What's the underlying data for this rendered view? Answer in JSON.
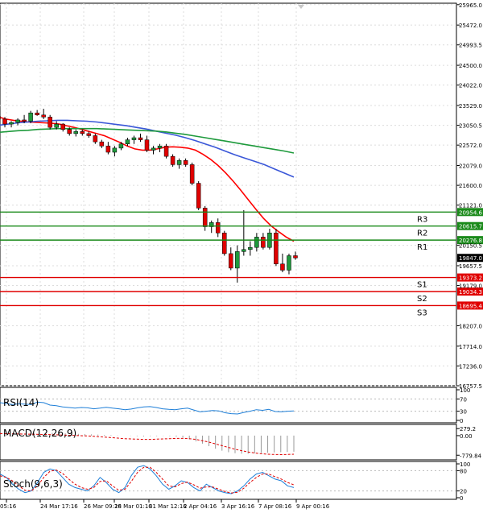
{
  "chart_data": {
    "type": "candlestick",
    "main": {
      "ylim": [
        16757.5,
        26000
      ],
      "y_ticks": [
        "25965.0",
        "25472.0",
        "24993.5",
        "24500.0",
        "24022.0",
        "23529.0",
        "23050.5",
        "22572.0",
        "22079.0",
        "21600.0",
        "21121.0",
        "20150.5",
        "19657.5",
        "19179.0",
        "18207.0",
        "17714.0",
        "17236.0",
        "16757.5"
      ],
      "x_ticks": [
        "05:16",
        "24 Mar 17:16",
        "26 Mar 09:16",
        "28 Mar 01:16",
        "31 Mar 12:16",
        "2 Apr 04:16",
        "3 Apr 16:16",
        "7 Apr 08:16",
        "9 Apr 00:16"
      ],
      "last_price": "19847.0",
      "candles": [
        [
          23270,
          23380,
          23150,
          23200
        ],
        [
          23200,
          23250,
          23000,
          23080
        ],
        [
          23080,
          23150,
          23000,
          23120
        ],
        [
          23120,
          23220,
          23050,
          23180
        ],
        [
          23180,
          23300,
          23100,
          23150
        ],
        [
          23150,
          23400,
          23100,
          23350
        ],
        [
          23350,
          23420,
          23280,
          23300
        ],
        [
          23300,
          23450,
          23200,
          23250
        ],
        [
          23250,
          23300,
          22950,
          23000
        ],
        [
          23000,
          23150,
          22950,
          23080
        ],
        [
          23080,
          23100,
          22900,
          22950
        ],
        [
          22950,
          23000,
          22800,
          22850
        ],
        [
          22850,
          22950,
          22780,
          22900
        ],
        [
          22900,
          22950,
          22800,
          22850
        ],
        [
          22850,
          22900,
          22750,
          22800
        ],
        [
          22800,
          22850,
          22600,
          22650
        ],
        [
          22650,
          22700,
          22500,
          22550
        ],
        [
          22550,
          22650,
          22350,
          22400
        ],
        [
          22400,
          22550,
          22300,
          22500
        ],
        [
          22500,
          22650,
          22450,
          22600
        ],
        [
          22600,
          22750,
          22550,
          22700
        ],
        [
          22700,
          22800,
          22600,
          22750
        ],
        [
          22750,
          22850,
          22650,
          22700
        ],
        [
          22700,
          22800,
          22400,
          22450
        ],
        [
          22450,
          22550,
          22350,
          22500
        ],
        [
          22500,
          22600,
          22400,
          22550
        ],
        [
          22550,
          22600,
          22250,
          22300
        ],
        [
          22300,
          22350,
          22050,
          22100
        ],
        [
          22100,
          22250,
          22000,
          22200
        ],
        [
          22200,
          22250,
          22050,
          22100
        ],
        [
          22100,
          22150,
          21600,
          21650
        ],
        [
          21650,
          21700,
          21000,
          21050
        ],
        [
          21050,
          21100,
          20500,
          20600
        ],
        [
          20600,
          20750,
          20450,
          20700
        ],
        [
          20700,
          20800,
          20350,
          20450
        ],
        [
          20450,
          20500,
          19900,
          19950
        ],
        [
          19950,
          20100,
          19550,
          19600
        ],
        [
          19600,
          20150,
          19250,
          20000
        ],
        [
          20000,
          21000,
          19900,
          20050
        ],
        [
          20050,
          20250,
          19900,
          20100
        ],
        [
          20100,
          20450,
          20000,
          20350
        ],
        [
          20350,
          20450,
          20050,
          20100
        ],
        [
          20100,
          20550,
          20050,
          20450
        ],
        [
          20450,
          20550,
          19650,
          19700
        ],
        [
          19700,
          19950,
          19500,
          19550
        ],
        [
          19550,
          19950,
          19450,
          19900
        ],
        [
          19900,
          20000,
          19800,
          19847
        ]
      ],
      "ma_lines": [
        {
          "color": "#ff0000",
          "values": [
            23250,
            23200,
            23170,
            23150,
            23130,
            23120,
            23110,
            23100,
            23080,
            23040,
            23000,
            22950,
            22900,
            22850,
            22800,
            22720,
            22640,
            22550,
            22480,
            22450,
            22450,
            22480,
            22520,
            22530,
            22520,
            22500,
            22450,
            22350,
            22230,
            22080,
            21900,
            21700,
            21480,
            21250,
            21020,
            20800,
            20620,
            20480,
            20350,
            20250
          ]
        },
        {
          "color": "#3a57d8",
          "values": [
            23050,
            23080,
            23110,
            23130,
            23150,
            23160,
            23170,
            23170,
            23160,
            23150,
            23130,
            23100,
            23070,
            23040,
            23000,
            22960,
            22910,
            22860,
            22810,
            22750,
            22680,
            22600,
            22520,
            22430,
            22340,
            22260,
            22180,
            22100,
            22000,
            21900,
            21800
          ]
        },
        {
          "color": "#1e9a3c",
          "values": [
            22880,
            22900,
            22920,
            22930,
            22950,
            22960,
            22970,
            22970,
            22970,
            22970,
            22970,
            22960,
            22950,
            22940,
            22930,
            22920,
            22910,
            22890,
            22860,
            22830,
            22790,
            22750,
            22710,
            22670,
            22630,
            22590,
            22550,
            22510,
            22470,
            22430,
            22380
          ]
        }
      ],
      "resistance": [
        {
          "label": "R3",
          "value": "20954.6",
          "price": 20954.6
        },
        {
          "label": "R2",
          "value": "20615.7",
          "price": 20615.7
        },
        {
          "label": "R1",
          "value": "20276.8",
          "price": 20276.8
        }
      ],
      "support": [
        {
          "label": "S1",
          "value": "19373.2",
          "price": 19373.2
        },
        {
          "label": "S2",
          "value": "19034.3",
          "price": 19034.3
        },
        {
          "label": "S3",
          "value": "18695.4",
          "price": 18695.4
        }
      ]
    },
    "rsi": {
      "title": "RSI(14)",
      "ylim": [
        0,
        100
      ],
      "y_ticks": [
        "100",
        "70",
        "30",
        "0"
      ],
      "values": [
        58,
        55,
        52,
        54,
        53,
        52,
        60,
        58,
        50,
        48,
        44,
        42,
        40,
        42,
        41,
        38,
        40,
        43,
        40,
        38,
        35,
        37,
        41,
        44,
        45,
        42,
        38,
        36,
        35,
        38,
        40,
        34,
        28,
        30,
        32,
        31,
        25,
        22,
        21,
        26,
        30,
        35,
        33,
        36,
        29,
        28,
        30,
        31
      ]
    },
    "macd": {
      "title": "MACD(12,26,9)",
      "ylim": [
        -900,
        350
      ],
      "y_ticks": [
        "279.2",
        "0.00",
        "-779.84"
      ],
      "histogram": [
        10,
        30,
        50,
        70,
        80,
        90,
        100,
        110,
        110,
        100,
        90,
        80,
        70,
        60,
        50,
        40,
        30,
        20,
        10,
        0,
        -10,
        -20,
        -30,
        -20,
        -20,
        -10,
        -20,
        -40,
        -80,
        -150,
        -230,
        -320,
        -420,
        -520,
        -600,
        -660,
        -700,
        -720,
        -720,
        -700,
        -690,
        -680,
        -670,
        -660,
        -650,
        -640
      ],
      "signal": [
        80,
        75,
        70,
        65,
        60,
        55,
        50,
        45,
        40,
        30,
        20,
        10,
        0,
        -10,
        -20,
        -40,
        -60,
        -80,
        -100,
        -120,
        -130,
        -140,
        -150,
        -150,
        -140,
        -130,
        -120,
        -110,
        -110,
        -120,
        -150,
        -200,
        -260,
        -330,
        -400,
        -470,
        -540,
        -600,
        -650,
        -690,
        -720,
        -740,
        -750,
        -755,
        -750,
        -740
      ]
    },
    "stoch": {
      "title": "Stoch(9,6,3)",
      "ylim": [
        0,
        100
      ],
      "y_ticks": [
        "100",
        "80",
        "20",
        "0"
      ],
      "main": [
        70,
        60,
        40,
        25,
        15,
        20,
        45,
        75,
        85,
        80,
        60,
        40,
        30,
        25,
        20,
        35,
        60,
        45,
        25,
        15,
        30,
        65,
        90,
        95,
        85,
        65,
        40,
        25,
        35,
        50,
        45,
        30,
        20,
        40,
        30,
        20,
        15,
        12,
        20,
        35,
        55,
        70,
        75,
        65,
        55,
        50,
        35,
        30
      ],
      "signal": [
        65,
        60,
        50,
        35,
        22,
        20,
        35,
        60,
        78,
        82,
        72,
        55,
        40,
        30,
        25,
        30,
        48,
        50,
        35,
        22,
        25,
        48,
        75,
        90,
        90,
        75,
        55,
        35,
        32,
        42,
        46,
        38,
        28,
        32,
        32,
        25,
        18,
        14,
        16,
        28,
        45,
        60,
        70,
        70,
        62,
        55,
        45,
        38
      ]
    }
  }
}
